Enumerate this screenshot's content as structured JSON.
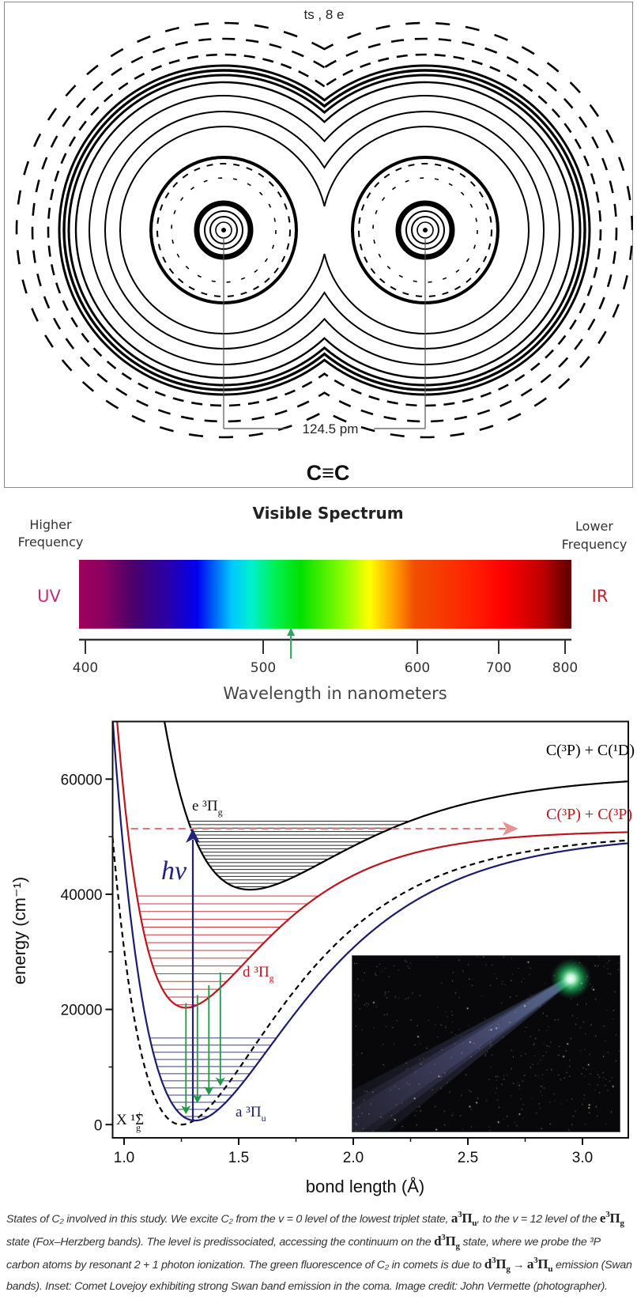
{
  "top_panel": {
    "title": "ts , 8 e",
    "bond_length_label": "124.5 pm",
    "formula": "C≡C"
  },
  "spectrum": {
    "title": "Visible Spectrum",
    "left_label": [
      "Higher",
      "Frequency"
    ],
    "right_label": [
      "Lower",
      "Frequency"
    ],
    "uv_label": "UV",
    "ir_label": "IR",
    "uv_color": "#c0307a",
    "ir_color": "#c0202a",
    "tick_labels": [
      "400",
      "500",
      "600",
      "700",
      "800"
    ],
    "xlabel": "Wavelength in nanometers",
    "marker_nm": 518,
    "marker_color": "#2aa860"
  },
  "chart_data": {
    "type": "line",
    "xlabel": "bond length (Å)",
    "ylabel": "energy (cm⁻¹)",
    "xlim": [
      0.95,
      3.2
    ],
    "ylim": [
      -2300,
      70000
    ],
    "xticks": [
      1.0,
      1.5,
      2.0,
      2.5,
      3.0
    ],
    "xtick_labels": [
      "1.0",
      "1.5",
      "2.0",
      "2.5",
      "3.0"
    ],
    "yticks": [
      0,
      20000,
      40000,
      60000
    ],
    "ytick_labels": [
      "0",
      "20000",
      "40000",
      "60000"
    ],
    "grid": false,
    "series": [
      {
        "name": "X ¹Σg⁺",
        "label": {
          "main": "X ¹Σ",
          "sub": "g",
          "sup": "+"
        },
        "color": "#000000",
        "style": "dashed",
        "equilibrium_bond_length": 1.25,
        "minimum_energy": 0,
        "asymptote_energy": 50500,
        "levels": []
      },
      {
        "name": "a ³Πu",
        "label": {
          "main": "a ³Π",
          "sub": "u"
        },
        "color": "#1c1c6c",
        "style": "solid",
        "equilibrium_bond_length": 1.31,
        "minimum_energy": 700,
        "asymptote_energy": 50500,
        "levels": [
          1400,
          2640,
          3880,
          5120,
          6360,
          7600,
          8840,
          10080,
          11320,
          12560,
          13800,
          15040
        ]
      },
      {
        "name": "d ³Πg",
        "label": {
          "main": "d ³Π",
          "sub": "g"
        },
        "color": "#c0141c",
        "style": "solid",
        "equilibrium_bond_length": 1.27,
        "minimum_energy": 20300,
        "asymptote_energy": 51100,
        "levels": [
          20800,
          22150,
          23500,
          24850,
          26200,
          27550,
          28900,
          30250,
          31600,
          32950,
          34300,
          35650,
          37000,
          38350,
          39700
        ]
      },
      {
        "name": "e ³Πg",
        "label": {
          "main": "e ³Π",
          "sub": "g"
        },
        "color": "#000000",
        "style": "solid",
        "equilibrium_bond_length": 1.55,
        "minimum_energy": 40800,
        "asymptote_energy": 60800,
        "levels": [
          41300,
          41900,
          42500,
          43100,
          43700,
          44300,
          44900,
          45500,
          46100,
          46700,
          47300,
          47900,
          48500,
          49100,
          49700,
          50300,
          50900,
          51500,
          52100,
          52700
        ]
      }
    ],
    "asymptote_labels": [
      {
        "text": "C(³P) + C(¹D)",
        "color": "#000000"
      },
      {
        "text": "C(³P) + C(³P)",
        "color": "#c0141c"
      }
    ],
    "excitation": {
      "label": "hν",
      "bond_length": 1.3,
      "from_energy": 800,
      "to_energy": 51400,
      "color": "#22227a"
    },
    "dissociation": {
      "energy": 51400,
      "from_bond_length": 1.03,
      "to_bond_length": 2.72,
      "color": "#e07878"
    },
    "emission_arrows": {
      "color": "#1e9a46",
      "bond_lengths": [
        1.27,
        1.32,
        1.37,
        1.42
      ],
      "from_energy": [
        21100,
        22500,
        24200,
        26400
      ],
      "to_energy": [
        1800,
        3700,
        5100,
        6700
      ]
    },
    "inset": "comet photograph"
  },
  "caption": [
    {
      "text": "States of C₂ involved in this study. We excite C₂ from the v = 0 level of the lowest triplet state, "
    },
    {
      "math": "a",
      "sup": "3",
      "sym": "Π",
      "sub": "u"
    },
    {
      "text": ", to the v = 12 level of the "
    },
    {
      "math": "e",
      "sup": "3",
      "sym": "Π",
      "sub": "g"
    },
    {
      "text": " state (Fox–Herzberg bands). The level is predissociated, accessing the continuum on the "
    },
    {
      "math": "d",
      "sup": "3",
      "sym": "Π",
      "sub": "g"
    },
    {
      "text": " state, where we probe the ³P carbon atoms by resonant 2 + 1 photon ionization. The green fluorescence of C₂ in comets is due to "
    },
    {
      "math": "d",
      "sup": "3",
      "sym": "Π",
      "sub": "g"
    },
    {
      "text": " → "
    },
    {
      "math": "a",
      "sup": "3",
      "sym": "Π",
      "sub": "u"
    },
    {
      "text": " emission (Swan bands). Inset: Comet Lovejoy exhibiting strong Swan band emission in the coma. Image credit: John Vermette (photographer)."
    }
  ]
}
